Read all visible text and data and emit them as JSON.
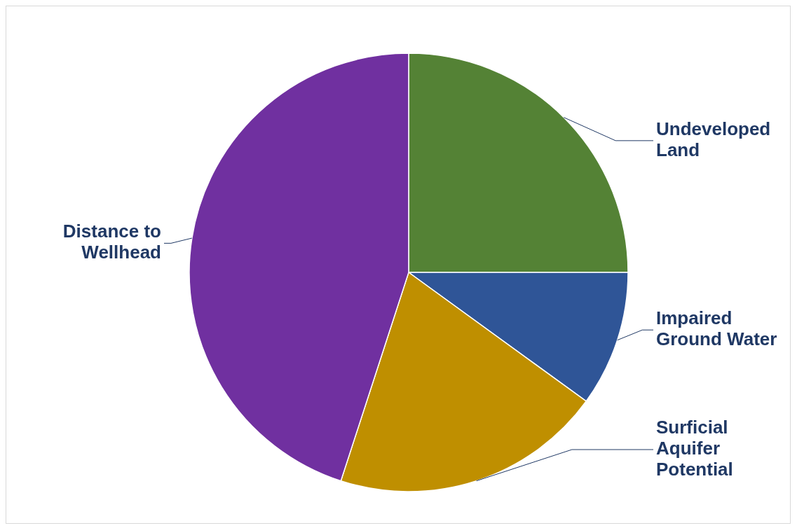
{
  "chart_data": {
    "type": "pie",
    "categories": [
      "Undeveloped Land",
      "Impaired Ground Water",
      "Surficial Aquifer Potential",
      "Distance to Wellhead"
    ],
    "values": [
      25,
      10,
      20,
      45
    ],
    "colors": [
      "#548235",
      "#2f5597",
      "#bf8f00",
      "#7030a0"
    ]
  }
}
